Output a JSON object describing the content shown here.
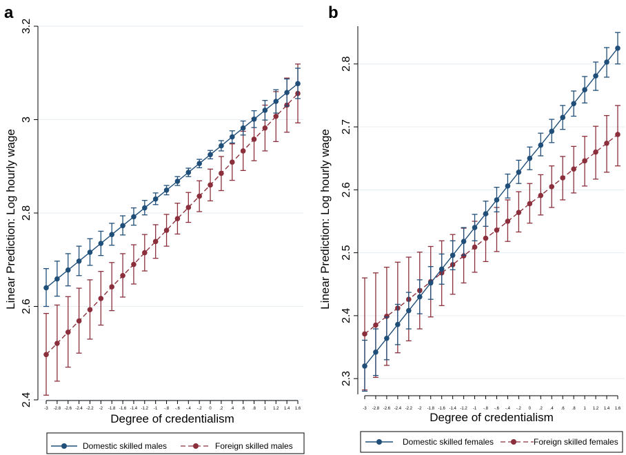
{
  "colors": {
    "domestic": "#1f4e79",
    "foreign": "#8b2f3c",
    "grid": "#e6eef2",
    "axis": "#000000"
  },
  "chart_data": [
    {
      "panel": "a",
      "type": "line",
      "xlabel": "Degree of credentialism",
      "ylabel": "Linear Prediction: Log hourly wage",
      "ylim": [
        2.4,
        3.2
      ],
      "yticks": [
        "2.4",
        "2.6",
        "2.8",
        "3",
        "3.2"
      ],
      "grid": true,
      "x": [
        -3,
        -2.8,
        -2.6,
        -2.4,
        -2.2,
        -2,
        -1.8,
        -1.6,
        -1.4,
        -1.2,
        -1,
        -0.8,
        -0.6,
        -0.4,
        -0.2,
        0,
        0.2,
        0.4,
        0.6,
        0.8,
        1,
        1.2,
        1.4,
        1.6
      ],
      "xticklabels": [
        "-3",
        "-2.8",
        "-2.6",
        "-2.4",
        "-2.2",
        "-2",
        "-1.8",
        "-1.6",
        "-1.4",
        "-1.2",
        "-1",
        "-.8",
        "-.6",
        "-.4",
        "-.2",
        "0",
        ".2",
        ".4",
        ".6",
        ".8",
        "1",
        "1.2",
        "1.4",
        "1.6"
      ],
      "legend_position": "bottom",
      "series": [
        {
          "name": "Domestic skilled males",
          "style": "solid",
          "values": [
            2.64,
            2.659,
            2.678,
            2.697,
            2.716,
            2.735,
            2.754,
            2.773,
            2.792,
            2.811,
            2.83,
            2.849,
            2.868,
            2.887,
            2.906,
            2.925,
            2.944,
            2.963,
            2.982,
            3.001,
            3.02,
            3.039,
            3.058,
            3.077
          ],
          "ci_low": [
            2.6,
            2.622,
            2.644,
            2.666,
            2.688,
            2.709,
            2.731,
            2.753,
            2.774,
            2.796,
            2.818,
            2.839,
            2.859,
            2.878,
            2.897,
            2.916,
            2.933,
            2.95,
            2.967,
            2.983,
            2.999,
            3.014,
            3.029,
            3.045
          ],
          "ci_high": [
            2.681,
            2.697,
            2.713,
            2.729,
            2.745,
            2.761,
            2.778,
            2.794,
            2.811,
            2.827,
            2.843,
            2.859,
            2.878,
            2.896,
            2.915,
            2.934,
            2.955,
            2.976,
            2.997,
            3.019,
            3.041,
            3.064,
            3.087,
            3.11
          ]
        },
        {
          "name": "Foreign skilled males",
          "style": "dashed",
          "values": [
            2.497,
            2.521,
            2.545,
            2.569,
            2.593,
            2.617,
            2.642,
            2.666,
            2.69,
            2.715,
            2.739,
            2.763,
            2.788,
            2.812,
            2.836,
            2.86,
            2.885,
            2.909,
            2.933,
            2.958,
            2.982,
            3.007,
            3.031,
            3.056
          ],
          "ci_low": [
            2.41,
            2.44,
            2.47,
            2.5,
            2.53,
            2.56,
            2.591,
            2.62,
            2.648,
            2.676,
            2.703,
            2.729,
            2.755,
            2.78,
            2.803,
            2.826,
            2.848,
            2.87,
            2.891,
            2.912,
            2.933,
            2.953,
            2.973,
            2.993
          ],
          "ci_high": [
            2.585,
            2.603,
            2.621,
            2.639,
            2.657,
            2.675,
            2.694,
            2.713,
            2.732,
            2.754,
            2.775,
            2.797,
            2.821,
            2.844,
            2.869,
            2.894,
            2.921,
            2.948,
            2.975,
            3.003,
            3.031,
            3.06,
            3.089,
            3.119
          ]
        }
      ]
    },
    {
      "panel": "b",
      "type": "line",
      "xlabel": "Degree of credentialism",
      "ylabel": "Linear Prediction: Log hourly wage",
      "ylim": [
        2.275,
        2.86
      ],
      "yticks": [
        "2.3",
        "2.4",
        "2.5",
        "2.6",
        "2.7",
        "2.8"
      ],
      "grid": true,
      "x": [
        -3,
        -2.8,
        -2.6,
        -2.4,
        -2.2,
        -2,
        -1.8,
        -1.6,
        -1.4,
        -1.2,
        -1,
        -0.8,
        -0.6,
        -0.4,
        -0.2,
        0,
        0.2,
        0.4,
        0.6,
        0.8,
        1,
        1.2,
        1.4,
        1.6
      ],
      "xticklabels": [
        "-3",
        "-2.8",
        "-2.6",
        "-2.4",
        "-2.2",
        "-2",
        "-1.8",
        "-1.6",
        "-1.4",
        "-1.2",
        "-1",
        "-.8",
        "-.6",
        "-.4",
        "-.2",
        "0",
        ".2",
        ".4",
        ".6",
        ".8",
        "1",
        "1.2",
        "1.4",
        "1.6"
      ],
      "legend_position": "bottom",
      "series": [
        {
          "name": "Domestic skilled females",
          "style": "solid",
          "values": [
            2.32,
            2.342,
            2.364,
            2.386,
            2.408,
            2.43,
            2.452,
            2.474,
            2.496,
            2.518,
            2.54,
            2.562,
            2.584,
            2.606,
            2.628,
            2.65,
            2.671,
            2.693,
            2.715,
            2.737,
            2.759,
            2.781,
            2.803,
            2.825
          ],
          "ci_low": [
            2.28,
            2.305,
            2.33,
            2.354,
            2.379,
            2.403,
            2.426,
            2.45,
            2.473,
            2.496,
            2.519,
            2.542,
            2.565,
            2.587,
            2.61,
            2.632,
            2.654,
            2.675,
            2.696,
            2.717,
            2.738,
            2.758,
            2.779,
            2.8
          ],
          "ci_high": [
            2.361,
            2.379,
            2.398,
            2.418,
            2.437,
            2.457,
            2.478,
            2.498,
            2.519,
            2.54,
            2.561,
            2.582,
            2.604,
            2.625,
            2.647,
            2.668,
            2.69,
            2.712,
            2.734,
            2.757,
            2.78,
            2.803,
            2.826,
            2.85
          ]
        },
        {
          "name": "Foreign skilled females",
          "style": "dashed",
          "values": [
            2.371,
            2.385,
            2.399,
            2.412,
            2.426,
            2.44,
            2.454,
            2.468,
            2.481,
            2.495,
            2.509,
            2.523,
            2.536,
            2.55,
            2.564,
            2.578,
            2.591,
            2.605,
            2.619,
            2.633,
            2.646,
            2.66,
            2.674,
            2.688
          ],
          "ci_low": [
            2.282,
            2.302,
            2.321,
            2.341,
            2.36,
            2.379,
            2.398,
            2.416,
            2.434,
            2.452,
            2.469,
            2.486,
            2.502,
            2.518,
            2.533,
            2.547,
            2.56,
            2.572,
            2.584,
            2.595,
            2.606,
            2.617,
            2.628,
            2.638
          ],
          "ci_high": [
            2.46,
            2.468,
            2.477,
            2.485,
            2.493,
            2.501,
            2.51,
            2.519,
            2.529,
            2.539,
            2.55,
            2.561,
            2.572,
            2.584,
            2.597,
            2.61,
            2.624,
            2.638,
            2.653,
            2.669,
            2.685,
            2.701,
            2.718,
            2.734
          ]
        }
      ]
    }
  ]
}
